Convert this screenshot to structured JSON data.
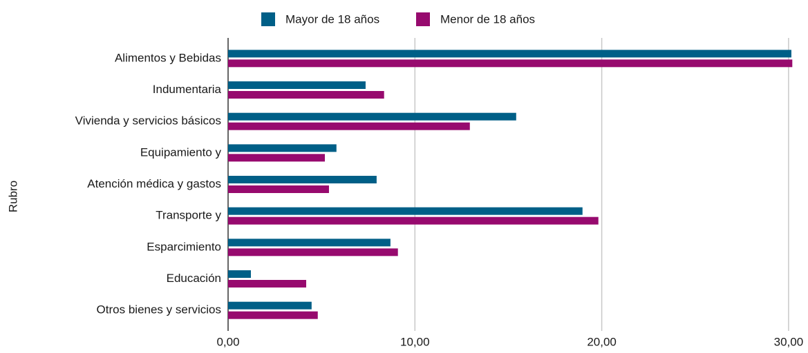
{
  "chart_data": {
    "type": "hbar",
    "ylabel": "Rubro",
    "categories": [
      "Alimentos y Bebidas",
      "Indumentaria",
      "Vivienda y servicios básicos",
      "Equipamiento y",
      "Atención médica y gastos",
      "Transporte y",
      "Esparcimiento",
      "Educación",
      "Otros bienes y servicios"
    ],
    "series": [
      {
        "name": "Mayor de 18 años",
        "color": "#005f87",
        "values": [
          30.15,
          7.36,
          15.42,
          5.8,
          7.95,
          18.97,
          8.69,
          1.22,
          4.47
        ]
      },
      {
        "name": "Menor de 18 años",
        "color": "#970a6e",
        "values": [
          30.2,
          8.35,
          12.94,
          5.18,
          5.4,
          19.82,
          9.09,
          4.18,
          4.8
        ]
      }
    ],
    "xlim": [
      0,
      30.3
    ],
    "xticks": [
      {
        "value": 0,
        "label": "0,00"
      },
      {
        "value": 10,
        "label": "10,00"
      },
      {
        "value": 20,
        "label": "20,00"
      },
      {
        "value": 30,
        "label": "30,00"
      }
    ],
    "grid": true,
    "legend": "top"
  }
}
